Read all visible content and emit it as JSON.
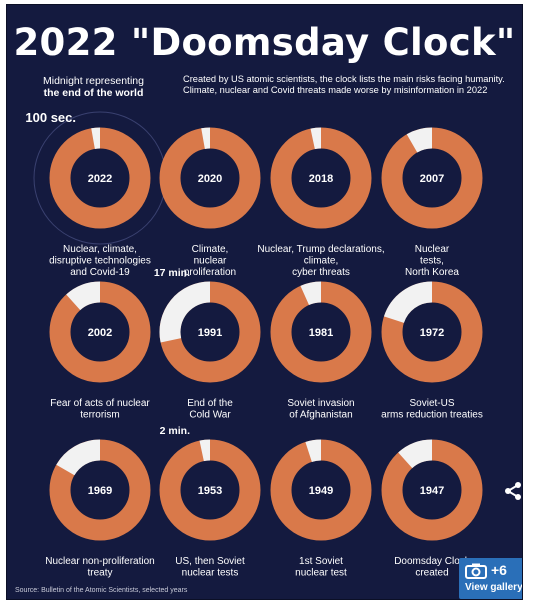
{
  "title": "2022 \"Doomsday Clock\"",
  "legend": {
    "midnight_line1": "Midnight representing",
    "midnight_line2": "the end of the world"
  },
  "intro": "Created by US atomic scientists, the clock lists the main risks facing humanity. Climate, nuclear and Covid threats made worse by misinformation in 2022",
  "source": "Source: Bulletin of the Atomic Scientists, selected years",
  "colors": {
    "background": "#141a3f",
    "ring": "#d9794a",
    "gap": "#f2f2f2",
    "text": "#ffffff"
  },
  "chart_data": {
    "type": "pie",
    "unit": "seconds to midnight",
    "full_circle_seconds": 3600,
    "clocks": [
      {
        "year": "2022",
        "seconds": 100,
        "callout": "100 sec.",
        "caption": [
          "Nuclear, climate,",
          "disruptive technologies",
          "and Covid-19"
        ]
      },
      {
        "year": "2020",
        "seconds": 100,
        "callout": "",
        "caption": [
          "Climate,",
          "nuclear",
          "proliferation"
        ]
      },
      {
        "year": "2018",
        "seconds": 120,
        "callout": "",
        "caption": [
          "Nuclear, Trump declarations,",
          "climate,",
          "cyber threats"
        ]
      },
      {
        "year": "2007",
        "seconds": 300,
        "callout": "",
        "caption": [
          "Nuclear",
          "tests,",
          "North Korea"
        ]
      },
      {
        "year": "2002",
        "seconds": 420,
        "callout": "",
        "caption": [
          "Fear of acts of nuclear",
          "terrorism"
        ]
      },
      {
        "year": "1991",
        "seconds": 1020,
        "callout": "17 min.",
        "caption": [
          "End of the",
          "Cold War"
        ]
      },
      {
        "year": "1981",
        "seconds": 240,
        "callout": "",
        "caption": [
          "Soviet invasion",
          "of Afghanistan"
        ]
      },
      {
        "year": "1972",
        "seconds": 720,
        "callout": "",
        "caption": [
          "Soviet-US",
          "arms reduction treaties"
        ]
      },
      {
        "year": "1969",
        "seconds": 600,
        "callout": "",
        "caption": [
          "Nuclear non-proliferation",
          "treaty"
        ]
      },
      {
        "year": "1953",
        "seconds": 120,
        "callout": "2 min.",
        "caption": [
          "US, then Soviet",
          "nuclear tests"
        ]
      },
      {
        "year": "1949",
        "seconds": 180,
        "callout": "",
        "caption": [
          "1st Soviet",
          "nuclear test"
        ]
      },
      {
        "year": "1947",
        "seconds": 420,
        "callout": "",
        "caption": [
          "Doomsday Clock",
          "created"
        ]
      }
    ]
  },
  "ui": {
    "share_icon": "share-icon",
    "gallery_count": "+6",
    "gallery_label": "View gallery",
    "gallery_icon": "camera-icon"
  }
}
